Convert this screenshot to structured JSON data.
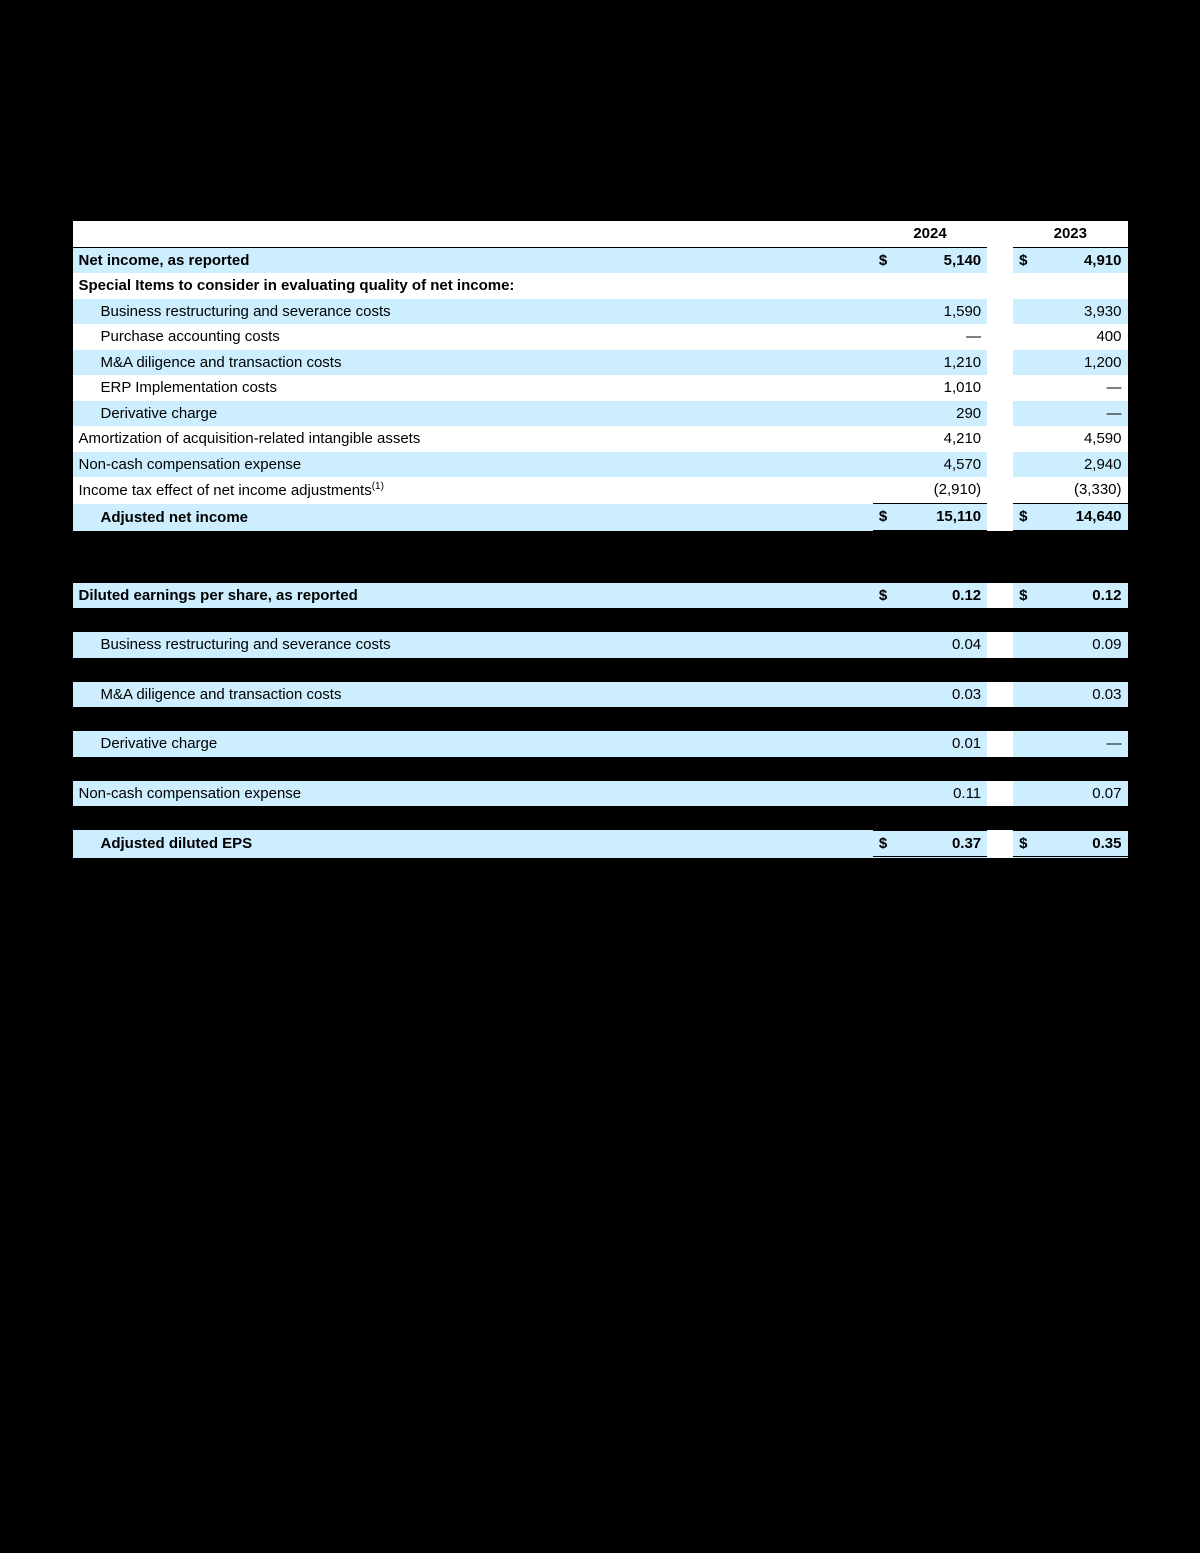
{
  "colors": {
    "shade": "#cceeff",
    "white": "#ffffff",
    "black": "#000000"
  },
  "table1": {
    "header": {
      "col1": "2024",
      "col2": "2023"
    },
    "rows": [
      {
        "label": "Net income, as reported",
        "y1_cur": "$",
        "y1": "5,140",
        "y2_cur": "$",
        "y2": "4,910",
        "bold": true,
        "shade": true
      },
      {
        "label": "Special Items to consider in evaluating quality of net income:",
        "y1_cur": "",
        "y1": "",
        "y2_cur": "",
        "y2": "",
        "bold": true,
        "shade": false
      },
      {
        "label": "Business restructuring and severance costs",
        "y1_cur": "",
        "y1": "1,590",
        "y2_cur": "",
        "y2": "3,930",
        "shade": true,
        "indent": 1
      },
      {
        "label": "Purchase accounting costs",
        "y1_cur": "",
        "y1": "—",
        "y2_cur": "",
        "y2": "400",
        "shade": false,
        "indent": 1
      },
      {
        "label": "M&A diligence and transaction costs",
        "y1_cur": "",
        "y1": "1,210",
        "y2_cur": "",
        "y2": "1,200",
        "shade": true,
        "indent": 1
      },
      {
        "label": "ERP Implementation costs",
        "y1_cur": "",
        "y1": "1,010",
        "y2_cur": "",
        "y2": "—",
        "shade": false,
        "indent": 1
      },
      {
        "label": "Derivative charge",
        "y1_cur": "",
        "y1": "290",
        "y2_cur": "",
        "y2": "—",
        "shade": true,
        "indent": 1
      },
      {
        "label": "Amortization of acquisition-related intangible assets",
        "y1_cur": "",
        "y1": "4,210",
        "y2_cur": "",
        "y2": "4,590",
        "shade": false
      },
      {
        "label": "Non-cash compensation expense",
        "y1_cur": "",
        "y1": "4,570",
        "y2_cur": "",
        "y2": "2,940",
        "shade": true
      },
      {
        "label_html": "Income tax effect of net income adjustments<sup>(1)</sup>",
        "y1_cur": "",
        "y1": "(2,910)",
        "y2_cur": "",
        "y2": "(3,330)",
        "shade": false,
        "underline": true
      },
      {
        "label": "Adjusted net income",
        "y1_cur": "$",
        "y1": "15,110",
        "y2_cur": "$",
        "y2": "14,640",
        "bold": true,
        "shade": true,
        "indent": 1,
        "total": true
      }
    ]
  },
  "table2": {
    "rows": [
      {
        "label": "Diluted earnings per share, as reported",
        "y1_cur": "$",
        "y1": "0.12",
        "y2_cur": "$",
        "y2": "0.12",
        "bold": true,
        "shade": true
      },
      {
        "black": true
      },
      {
        "label": "Business restructuring and severance costs",
        "y1_cur": "",
        "y1": "0.04",
        "y2_cur": "",
        "y2": "0.09",
        "shade": true,
        "indent": 1
      },
      {
        "black": true
      },
      {
        "label": "M&A diligence and transaction costs",
        "y1_cur": "",
        "y1": "0.03",
        "y2_cur": "",
        "y2": "0.03",
        "shade": true,
        "indent": 1
      },
      {
        "black": true
      },
      {
        "label": "Derivative charge",
        "y1_cur": "",
        "y1": "0.01",
        "y2_cur": "",
        "y2": "—",
        "shade": true,
        "indent": 1
      },
      {
        "black": true
      },
      {
        "label": "Non-cash compensation expense",
        "y1_cur": "",
        "y1": "0.11",
        "y2_cur": "",
        "y2": "0.07",
        "shade": true
      },
      {
        "black": true
      },
      {
        "label": "Adjusted diluted EPS",
        "y1_cur": "$",
        "y1": "0.37",
        "y2_cur": "$",
        "y2": "0.35",
        "bold": true,
        "shade": true,
        "indent": 1,
        "total": true
      }
    ]
  }
}
